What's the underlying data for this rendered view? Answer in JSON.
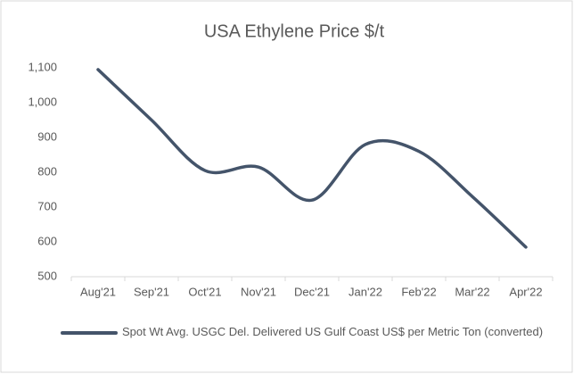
{
  "chart_data": {
    "type": "line",
    "title": "USA Ethylene Price $/t",
    "categories": [
      "Aug'21",
      "Sep'21",
      "Oct'21",
      "Nov'21",
      "Dec'21",
      "Jan'22",
      "Feb'22",
      "Mar'22",
      "Apr'22"
    ],
    "series": [
      {
        "name": "Spot Wt Avg. USGC Del. Delivered US Gulf Coast US$ per Metric Ton (converted)",
        "color": "#44546a",
        "values": [
          1095,
          950,
          805,
          815,
          720,
          880,
          860,
          730,
          585
        ]
      }
    ],
    "ylim": [
      500,
      1100
    ],
    "yticks": [
      500,
      600,
      700,
      800,
      900,
      {
        "value": 1000,
        "label": "1,000"
      },
      {
        "value": 1100,
        "label": "1,100"
      }
    ],
    "grid": false,
    "smooth": true,
    "legend": "bottom"
  }
}
